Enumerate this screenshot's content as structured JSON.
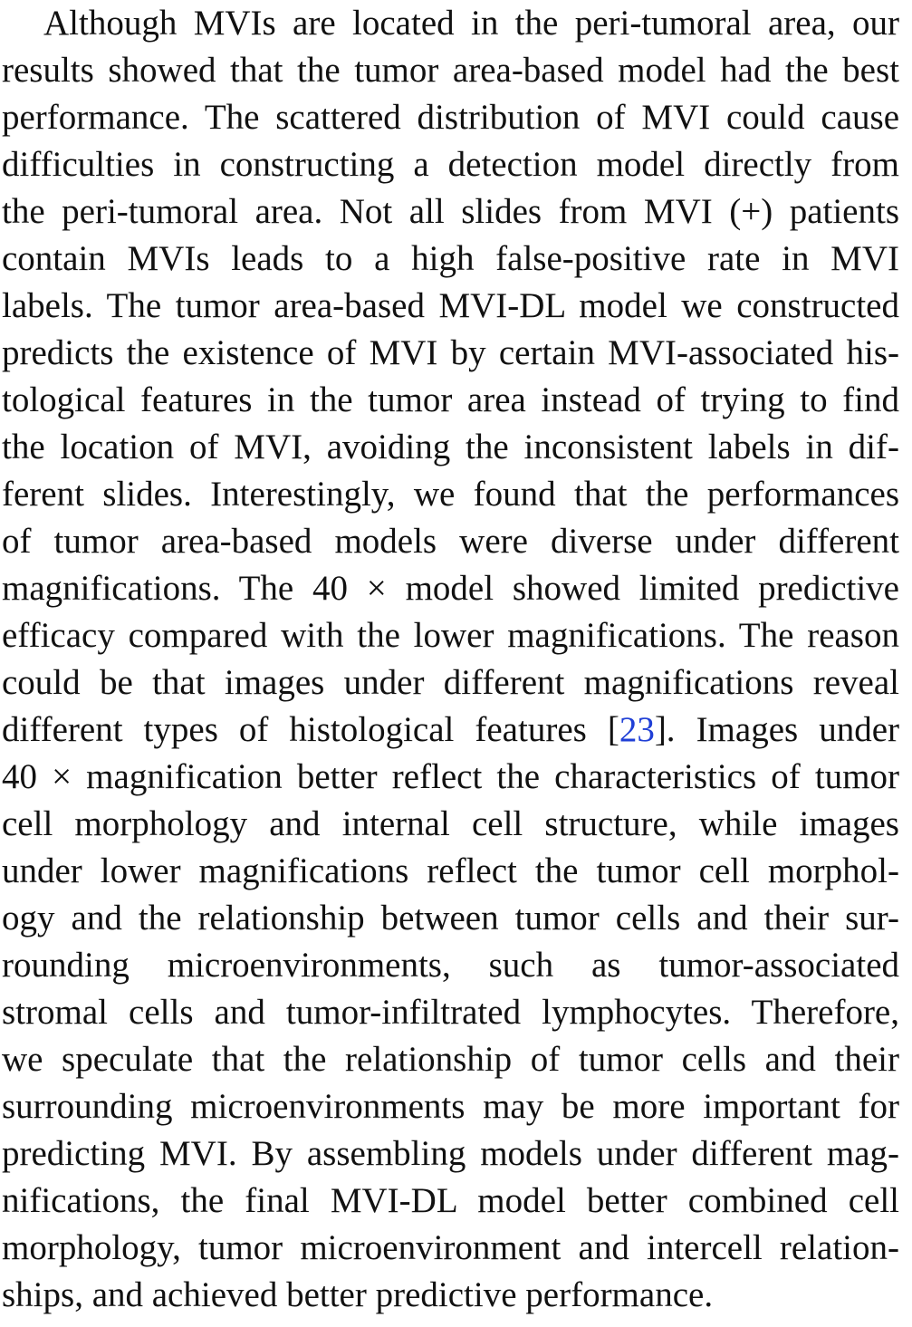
{
  "paragraph": {
    "lines": [
      {
        "text": "Although MVIs are located in the peri-tumoral area, our"
      },
      {
        "text": "results showed that the tumor area-based model had the best"
      },
      {
        "text": "performance. The scattered distribution of MVI could cause"
      },
      {
        "text": "difficulties in constructing a detection model directly from"
      },
      {
        "text": "the peri-tumoral area. Not all slides from MVI (+) patients"
      },
      {
        "text": "contain MVIs leads to a high false-positive rate in MVI"
      },
      {
        "text": "labels. The tumor area-based MVI-DL model we constructed"
      },
      {
        "text": "predicts the existence of MVI by certain MVI-associated his-"
      },
      {
        "text": "tological features in the tumor area instead of trying to find"
      },
      {
        "text": "the location of MVI, avoiding the inconsistent labels in dif-"
      },
      {
        "text": "ferent slides. Interestingly, we found that the performances"
      },
      {
        "text": "of tumor area-based models were diverse under different"
      },
      {
        "text": "magnifications. The 40 × model showed limited predictive"
      },
      {
        "text": "efficacy compared with the lower magnifications. The reason"
      },
      {
        "text": "could be that images under different magnifications reveal"
      },
      {
        "pre": "different types of histological features [",
        "cite": "23",
        "post": "]. Images under"
      },
      {
        "text": "40 × magnification better reflect the characteristics of tumor"
      },
      {
        "text": "cell morphology and internal cell structure, while images"
      },
      {
        "text": "under lower magnifications reflect the tumor cell morphol-"
      },
      {
        "text": "ogy and the relationship between tumor cells and their sur-"
      },
      {
        "text": "rounding microenvironments, such as tumor-associated"
      },
      {
        "text": "stromal cells and tumor-infiltrated lymphocytes. Therefore,"
      },
      {
        "text": "we speculate that the relationship of tumor cells and their"
      },
      {
        "text": "surrounding microenvironments may be more important for"
      },
      {
        "text": "predicting MVI. By assembling models under different mag-"
      },
      {
        "text": "nifications, the final MVI-DL model better combined cell"
      },
      {
        "text": "morphology, tumor microenvironment and intercell relation-"
      },
      {
        "text": "ships, and achieved better predictive performance."
      }
    ]
  }
}
